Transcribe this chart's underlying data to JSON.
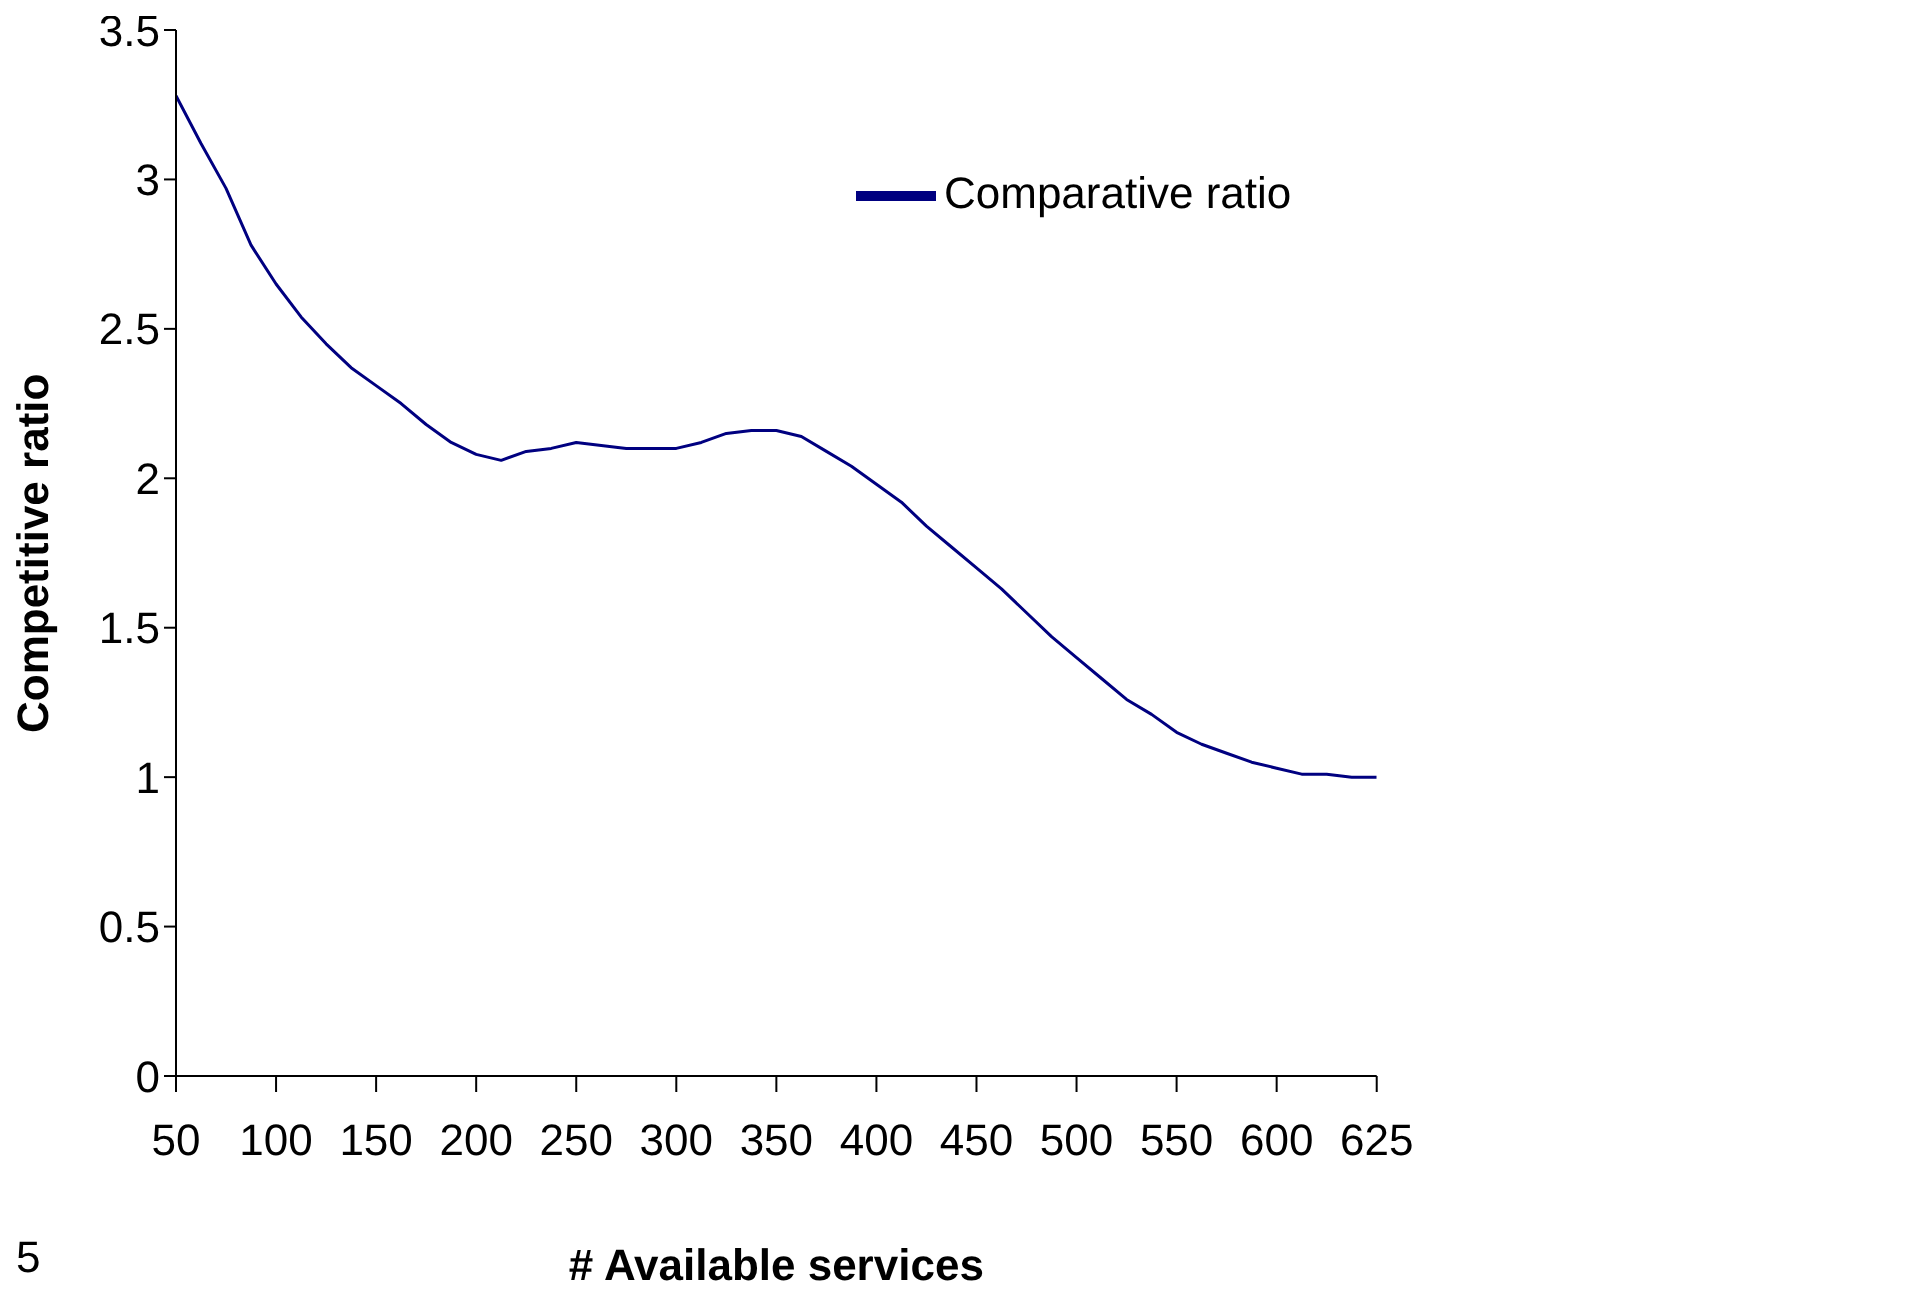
{
  "chart_data": {
    "type": "line",
    "xlabel": "# Available services",
    "ylabel": "Competitive ratio",
    "categories": [
      "50",
      null,
      null,
      null,
      "100",
      null,
      null,
      null,
      "150",
      null,
      null,
      null,
      "200",
      null,
      null,
      null,
      "250",
      null,
      null,
      null,
      "300",
      null,
      null,
      null,
      "350",
      null,
      null,
      null,
      "400",
      null,
      null,
      null,
      "450",
      null,
      null,
      null,
      "500",
      null,
      null,
      null,
      "550",
      null,
      null,
      null,
      "600",
      null,
      null,
      null,
      "625"
    ],
    "series": [
      {
        "name": "Comparative ratio",
        "color": "#000080",
        "values": [
          3.28,
          3.12,
          2.97,
          2.78,
          2.65,
          2.54,
          2.45,
          2.37,
          2.31,
          2.25,
          2.18,
          2.12,
          2.08,
          2.06,
          2.09,
          2.1,
          2.12,
          2.11,
          2.1,
          2.1,
          2.1,
          2.12,
          2.15,
          2.16,
          2.16,
          2.14,
          2.09,
          2.04,
          1.98,
          1.92,
          1.84,
          1.77,
          1.7,
          1.63,
          1.55,
          1.47,
          1.4,
          1.33,
          1.26,
          1.21,
          1.15,
          1.11,
          1.08,
          1.05,
          1.03,
          1.01,
          1.01,
          1.0,
          1.0
        ]
      }
    ],
    "ylim": [
      0,
      3.5
    ],
    "yticks": [
      0,
      0.5,
      1,
      1.5,
      2,
      2.5,
      3,
      3.5
    ],
    "grid": false,
    "legend": "top right",
    "marker": "none",
    "line_style": "solid",
    "annotations": [
      "5"
    ]
  }
}
